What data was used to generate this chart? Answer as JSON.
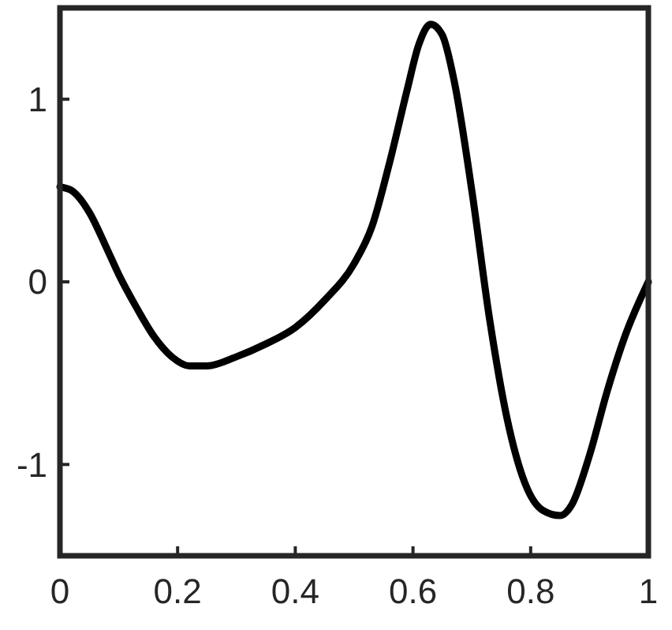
{
  "chart_data": {
    "type": "line",
    "xlim": [
      0,
      1
    ],
    "ylim": [
      -1.5,
      1.5
    ],
    "xticks": [
      0,
      0.2,
      0.4,
      0.6,
      0.8,
      1
    ],
    "yticks": [
      -1,
      0,
      1
    ],
    "grid": false,
    "marker": "none",
    "line_style": "solid",
    "series": [
      {
        "color": "#000000",
        "x": [
          0,
          0.02,
          0.05,
          0.08,
          0.1,
          0.13,
          0.16,
          0.19,
          0.22,
          0.25,
          0.3,
          0.35,
          0.4,
          0.45,
          0.5,
          0.53,
          0.56,
          0.59,
          0.61,
          0.63,
          0.65,
          0.67,
          0.7,
          0.73,
          0.76,
          0.79,
          0.82,
          0.85,
          0.87,
          0.9,
          0.93,
          0.96,
          1
        ],
        "values": [
          0.52,
          0.5,
          0.38,
          0.18,
          0.04,
          -0.14,
          -0.3,
          -0.41,
          -0.46,
          -0.46,
          -0.41,
          -0.34,
          -0.25,
          -0.1,
          0.1,
          0.3,
          0.65,
          1.05,
          1.3,
          1.41,
          1.35,
          1.1,
          0.5,
          -0.2,
          -0.75,
          -1.1,
          -1.25,
          -1.28,
          -1.22,
          -0.95,
          -0.6,
          -0.3,
          0
        ]
      }
    ]
  }
}
